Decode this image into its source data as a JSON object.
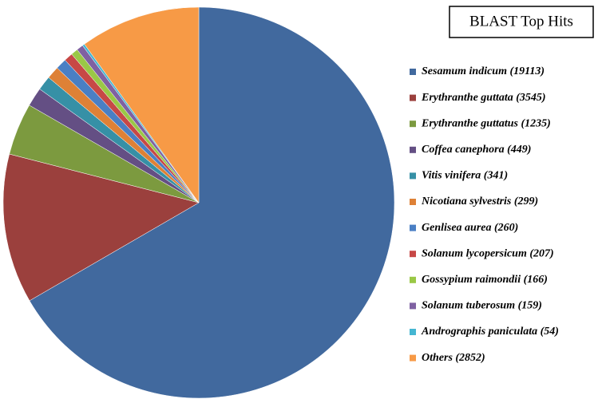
{
  "chart_data": {
    "type": "pie",
    "title": "BLAST Top Hits",
    "categories": [
      "Sesamum indicum (19113)",
      "Erythranthe guttata (3545)",
      "Erythranthe guttatus (1235)",
      "Coffea canephora (449)",
      "Vitis vinifera (341)",
      "Nicotiana sylvestris (299)",
      "Genlisea aurea (260)",
      "Solanum lycopersicum (207)",
      "Gossypium raimondii (166)",
      "Solanum tuberosum (159)",
      "Andrographis paniculata (54)",
      "Others (2852)"
    ],
    "values": [
      19113,
      3545,
      1235,
      449,
      341,
      299,
      260,
      207,
      166,
      159,
      54,
      2852
    ],
    "colors": [
      "#41699e",
      "#9b403d",
      "#7c9a3f",
      "#644f84",
      "#3690a6",
      "#de8136",
      "#4a7fc4",
      "#c74846",
      "#9ac846",
      "#7f61a2",
      "#45b6d2",
      "#f79a46"
    ],
    "legend": "right"
  }
}
